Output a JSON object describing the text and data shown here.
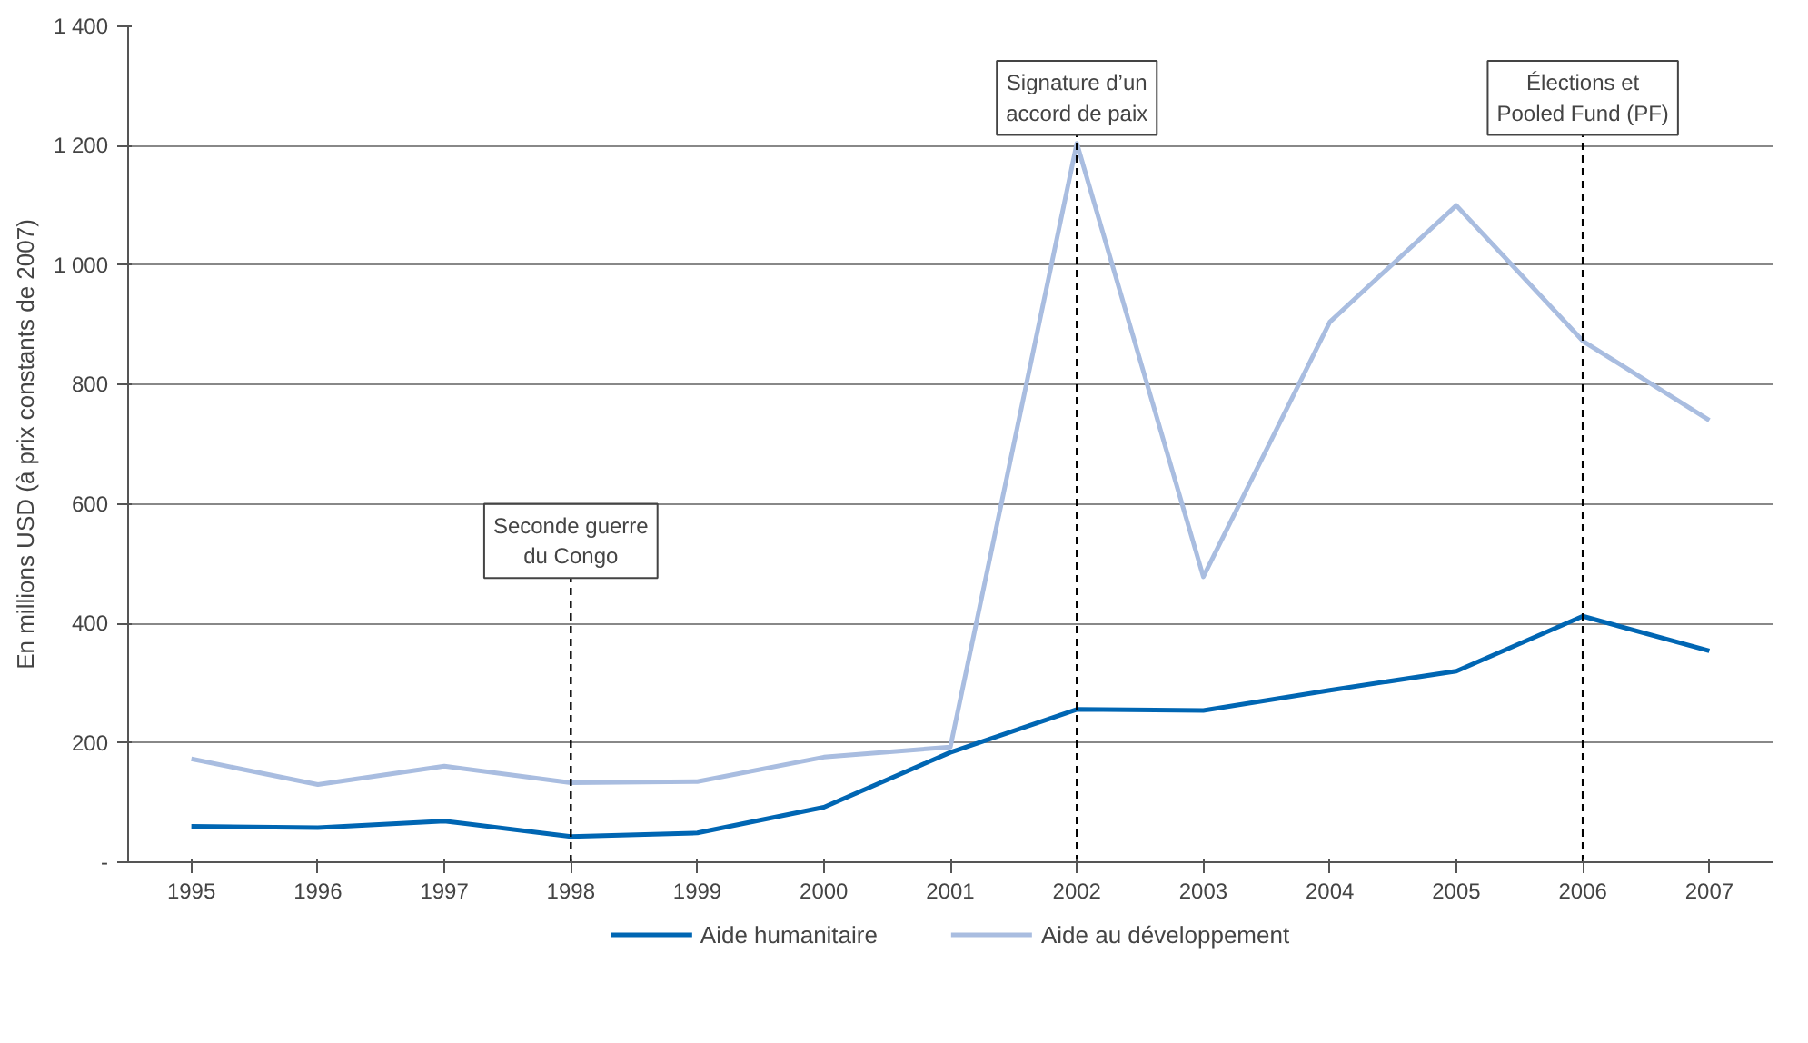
{
  "chart_data": {
    "type": "line",
    "ylabel": "En millions USD (à prix constants de 2007)",
    "x": [
      1995,
      1996,
      1997,
      1998,
      1999,
      2000,
      2001,
      2002,
      2003,
      2004,
      2005,
      2006,
      2007
    ],
    "series": [
      {
        "name": "Aide humanitaire",
        "color": "#0066b3",
        "values": [
          60,
          58,
          69,
          43,
          49,
          92,
          184,
          256,
          254,
          288,
          320,
          412,
          354
        ]
      },
      {
        "name": "Aide au développement",
        "color": "#a9bde0",
        "values": [
          173,
          130,
          161,
          133,
          135,
          176,
          193,
          1204,
          478,
          905,
          1100,
          873,
          740
        ]
      }
    ],
    "xlim": [
      1994.5,
      2007.5
    ],
    "xticks": [
      1995,
      1996,
      1997,
      1998,
      1999,
      2000,
      2001,
      2002,
      2003,
      2004,
      2005,
      2006,
      2007
    ],
    "ylim": [
      0,
      1400
    ],
    "yticks": [
      {
        "value": 0,
        "label": "-"
      },
      {
        "value": 200,
        "label": "200"
      },
      {
        "value": 400,
        "label": "400"
      },
      {
        "value": 600,
        "label": "600"
      },
      {
        "value": 800,
        "label": "800"
      },
      {
        "value": 1000,
        "label": "1 000"
      },
      {
        "value": 1200,
        "label": "1 200"
      },
      {
        "value": 1400,
        "label": "1 400"
      }
    ],
    "grid": "y",
    "legend": "bottom",
    "marker": "none",
    "line_style": "solid",
    "ref_lines": [
      {
        "axis": "x",
        "value": 1998,
        "label": "Seconde guerre\ndu Congo",
        "color": "#000000",
        "line_style": "dashed"
      },
      {
        "axis": "x",
        "value": 2002,
        "label": "Signature d’un\naccord de paix",
        "color": "#000000",
        "line_style": "dashed"
      },
      {
        "axis": "x",
        "value": 2006,
        "label": "Élections et\nPooled Fund (PF)",
        "color": "#000000",
        "line_style": "dashed"
      }
    ]
  }
}
